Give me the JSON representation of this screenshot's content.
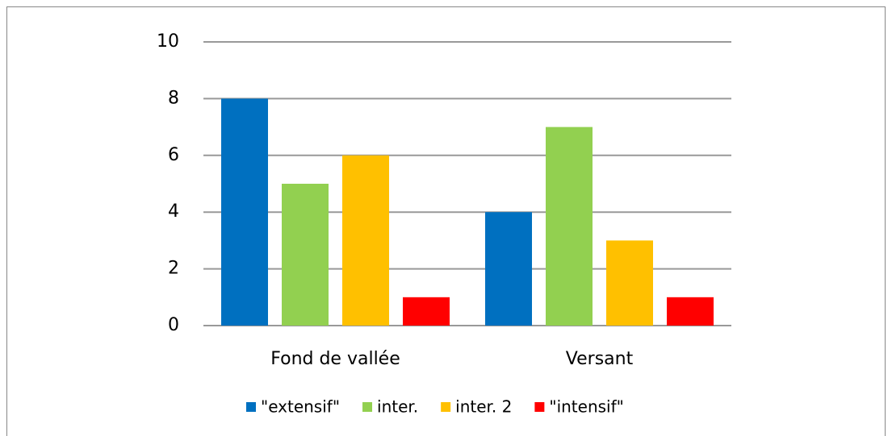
{
  "chart_data": {
    "type": "bar",
    "categories": [
      "Fond de vallée",
      "Versant"
    ],
    "series": [
      {
        "name": "\"extensif\"",
        "color": "#0070c0",
        "values": [
          8,
          4
        ]
      },
      {
        "name": "inter.",
        "color": "#92d050",
        "values": [
          5,
          7
        ]
      },
      {
        "name": "inter. 2",
        "color": "#ffc000",
        "values": [
          6,
          3
        ]
      },
      {
        "name": "\"intensif\"",
        "color": "#ff0000",
        "values": [
          1,
          1
        ]
      }
    ],
    "ylim": [
      0,
      10
    ],
    "yticks": [
      0,
      2,
      4,
      6,
      8,
      10
    ],
    "grid": true,
    "legend": "bottom"
  }
}
